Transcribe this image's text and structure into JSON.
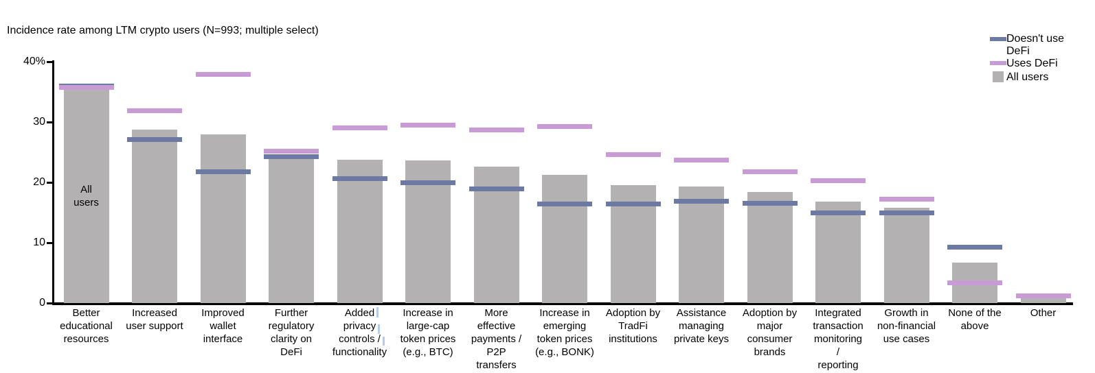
{
  "title": "Incidence rate among LTM crypto users (N=993; multiple select)",
  "colors": {
    "background": "#ffffff",
    "axis": "#000000",
    "all_users_bar": "#b3b1b1",
    "doesnt_use_defi_dash": "#6b79a3",
    "uses_defi_dash": "#c99bd6",
    "text": "#000000",
    "caret_artifact": "#b5cce9"
  },
  "legend": {
    "items": [
      {
        "label": "Doesn't use DeFi",
        "lines": [
          "Doesn't use",
          "DeFi"
        ],
        "swatch": "dash",
        "color": "#6b79a3"
      },
      {
        "label": "Uses DeFi",
        "lines": [
          "Uses DeFi"
        ],
        "swatch": "dash",
        "color": "#c99bd6"
      },
      {
        "label": "All users",
        "lines": [
          "All users"
        ],
        "swatch": "square",
        "color": "#b3b1b1"
      }
    ]
  },
  "y_axis": {
    "ticks": [
      {
        "value": 40,
        "label": "40%"
      },
      {
        "value": 30,
        "label": "30"
      },
      {
        "value": 20,
        "label": "20"
      },
      {
        "value": 10,
        "label": "10"
      },
      {
        "value": 0,
        "label": "0"
      }
    ]
  },
  "bar_annotation": {
    "category_index": 0,
    "text": "All users",
    "lines": [
      "All",
      "users"
    ]
  },
  "chart_data": {
    "type": "bar",
    "title": "Incidence rate among LTM crypto users (N=993; multiple select)",
    "ylim": [
      0,
      40
    ],
    "yticks": [
      0,
      10,
      20,
      30,
      40
    ],
    "ytick_labels": [
      "0",
      "10",
      "20",
      "30",
      "40%"
    ],
    "grid": false,
    "legend_position": "top-right",
    "categories": [
      "Better educational resources",
      "Increased user support",
      "Improved wallet interface",
      "Further regulatory clarity on DeFi",
      "Added privacy controls / functionality",
      "Increase in large-cap token prices (e.g., BTC)",
      "More effective payments / P2P transfers",
      "Increase in emerging token prices (e.g., BONK)",
      "Adoption by TradFi institutions",
      "Assistance managing private keys",
      "Adoption by major consumer brands",
      "Integrated transaction monitoring / reporting",
      "Growth in non-financial use cases",
      "None of the above",
      "Other"
    ],
    "category_label_lines": [
      [
        "Better",
        "educational",
        "resources"
      ],
      [
        "Increased",
        "user support"
      ],
      [
        "Improved",
        "wallet",
        "interface"
      ],
      [
        "Further",
        "regulatory",
        "clarity on",
        "DeFi"
      ],
      [
        "Added",
        "privacy",
        "controls /",
        "functionality"
      ],
      [
        "Increase in",
        "large-cap",
        "token prices",
        "(e.g., BTC)"
      ],
      [
        "More",
        "effective",
        "payments /",
        "P2P",
        "transfers"
      ],
      [
        "Increase in",
        "emerging",
        "token prices",
        "(e.g., BONK)"
      ],
      [
        "Adoption by",
        "TradFi",
        "institutions"
      ],
      [
        "Assistance",
        "managing",
        "private keys"
      ],
      [
        "Adoption by",
        "major",
        "consumer",
        "brands"
      ],
      [
        "Integrated",
        "transaction",
        "monitoring",
        "/",
        "reporting"
      ],
      [
        "Growth in",
        "non-financial",
        "use cases"
      ],
      [
        "None of the",
        "above"
      ],
      [
        "Other"
      ]
    ],
    "series": [
      {
        "name": "All users",
        "style": "bar",
        "color": "#b3b1b1",
        "values": [
          35.4,
          28.8,
          27.9,
          24.0,
          23.7,
          23.6,
          22.6,
          21.3,
          19.5,
          19.3,
          18.4,
          16.8,
          15.8,
          6.7,
          0.8
        ]
      },
      {
        "name": "Doesn't use DeFi",
        "style": "dash",
        "color": "#6b79a3",
        "values": [
          36.0,
          27.1,
          21.8,
          24.3,
          20.6,
          19.9,
          18.9,
          16.4,
          16.4,
          16.9,
          16.5,
          14.9,
          15.0,
          9.3,
          null
        ]
      },
      {
        "name": "Uses DeFi",
        "style": "dash",
        "color": "#c99bd6",
        "values": [
          35.7,
          31.9,
          37.9,
          25.2,
          29.0,
          29.5,
          28.7,
          29.3,
          24.6,
          23.7,
          21.8,
          20.3,
          17.2,
          3.4,
          1.2
        ]
      }
    ]
  }
}
